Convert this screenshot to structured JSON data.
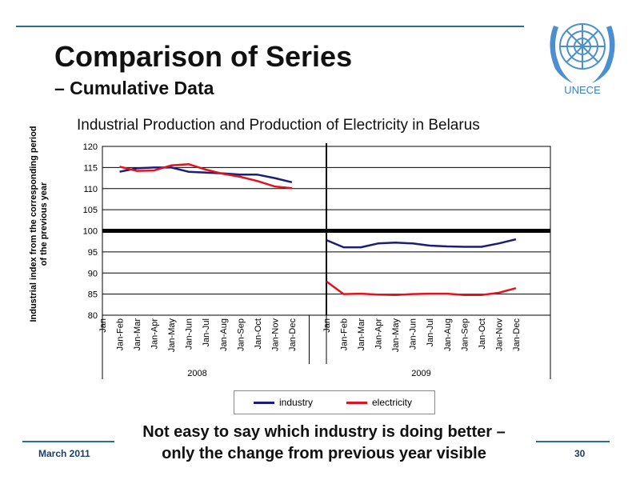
{
  "slide": {
    "title": "Comparison of Series",
    "subtitle": "– Cumulative Data",
    "logo_text": "UNECE",
    "note_line1": "Not easy to say which industry is doing better –",
    "note_line2": "only the change from previous year visible",
    "footer_date": "March 2011",
    "page_number": "30"
  },
  "colors": {
    "industry": "#1c1c7a",
    "electricity": "#e0141e",
    "accent": "#2a6f8f",
    "logo": "#4a90d0"
  },
  "chart_data": {
    "type": "line",
    "title": "Industrial Production and Production of Electricity in Belarus",
    "ylabel_line1": "Industrial index from the corresponding period",
    "ylabel_line2": "of the previous year",
    "ylim": [
      80,
      120
    ],
    "yticks": [
      80,
      85,
      90,
      95,
      100,
      105,
      110,
      115,
      120
    ],
    "reference_line": 100,
    "grid": true,
    "legend_position": "bottom",
    "years": [
      "2008",
      "2009"
    ],
    "categories": [
      "Jan",
      "Jan-Feb",
      "Jan-Mar",
      "Jan-Apr",
      "Jan-May",
      "Jan-Jun",
      "Jan-Jul",
      "Jan-Aug",
      "Jan-Sep",
      "Jan-Oct",
      "Jan-Nov",
      "Jan-Dec"
    ],
    "series": [
      {
        "name": "industry",
        "values_2008": [
          null,
          114,
          114.8,
          115,
          115,
          114,
          113.8,
          113.6,
          113.3,
          113.3,
          112.5,
          111.5
        ],
        "values_2009": [
          97.8,
          96.1,
          96.1,
          97,
          97.2,
          97,
          96.5,
          96.3,
          96.2,
          96.2,
          97,
          98
        ]
      },
      {
        "name": "electricity",
        "values_2008": [
          null,
          115.2,
          114.2,
          114.3,
          115.5,
          115.8,
          114.5,
          113.5,
          112.8,
          111.8,
          110.5,
          110.1
        ],
        "values_2009": [
          88,
          85,
          85.1,
          84.9,
          84.8,
          85,
          85.1,
          85.1,
          84.8,
          84.8,
          85.3,
          86.4
        ]
      }
    ]
  }
}
